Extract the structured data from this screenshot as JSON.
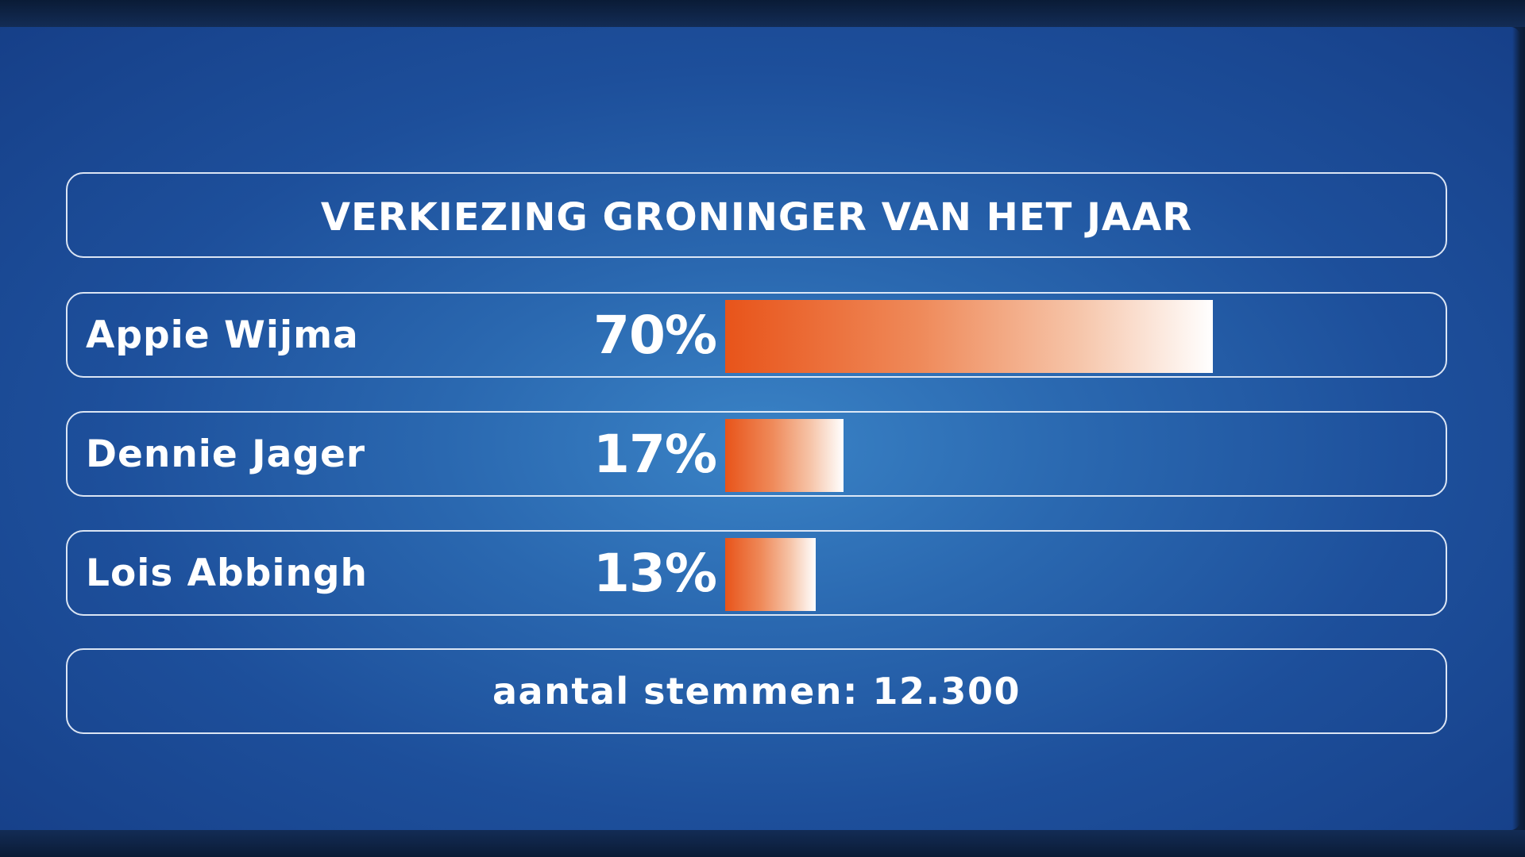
{
  "chart_data": {
    "type": "bar",
    "orientation": "horizontal",
    "title": "VERKIEZING GRONINGER VAN HET JAAR",
    "categories": [
      "Appie Wijma",
      "Dennie Jager",
      "Lois Abbingh"
    ],
    "values": [
      70,
      17,
      13
    ],
    "value_labels": [
      "70%",
      "17%",
      "13%"
    ],
    "unit": "%",
    "xlim": [
      0,
      100
    ],
    "grid": false,
    "footer": "aantal stemmen: 12.300"
  },
  "colors": {
    "background": "#1d4f9b",
    "bar_start": "#e8541a",
    "bar_end": "#ffffff",
    "panel_border": "#ebf2fc",
    "text": "#ffffff"
  }
}
